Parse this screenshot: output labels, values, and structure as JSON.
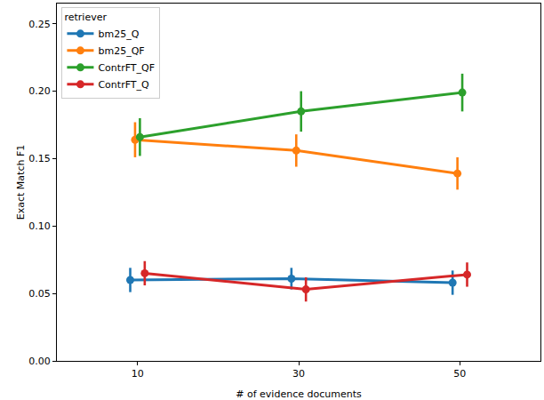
{
  "chart_data": {
    "type": "line",
    "x_label": "# of evidence documents",
    "y_label": "Exact Match F1",
    "legend_title": "retriever",
    "legend": "upper left",
    "grid": false,
    "marker": "circle",
    "categories": [
      "10",
      "30",
      "50"
    ],
    "ylim": [
      0,
      0.265
    ],
    "yticks": [
      {
        "value": 0,
        "label": "0.00"
      },
      0.05,
      {
        "value": 0.1,
        "label": "0.10"
      },
      0.15,
      {
        "value": 0.2,
        "label": "0.20"
      },
      0.25
    ],
    "series": [
      {
        "name": "bm25_Q",
        "color": "#1f77b4",
        "values": [
          0.06,
          0.061,
          0.058
        ],
        "errors": [
          0.009,
          0.008,
          0.009
        ]
      },
      {
        "name": "bm25_QF",
        "color": "#ff7f0e",
        "values": [
          0.164,
          0.156,
          0.139
        ],
        "errors": [
          0.013,
          0.012,
          0.012
        ]
      },
      {
        "name": "ContrFT_QF",
        "color": "#2ca02c",
        "values": [
          0.166,
          0.185,
          0.199
        ],
        "errors": [
          0.014,
          0.015,
          0.014
        ]
      },
      {
        "name": "ContrFT_Q",
        "color": "#d62728",
        "values": [
          0.065,
          0.053,
          0.064
        ],
        "errors": [
          0.009,
          0.009,
          0.009
        ]
      }
    ]
  }
}
